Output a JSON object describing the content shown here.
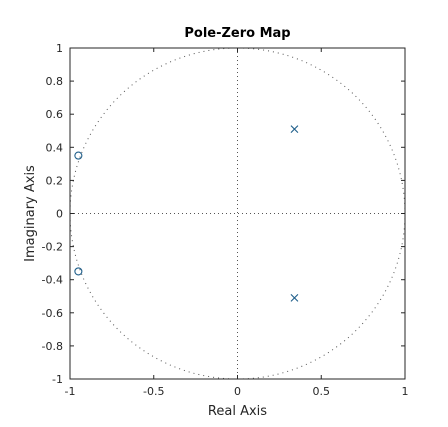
{
  "chart_data": {
    "type": "scatter",
    "title": "Pole-Zero Map",
    "xlabel": "Real Axis",
    "ylabel": "Imaginary Axis",
    "xlim": [
      -1,
      1
    ],
    "ylim": [
      -1,
      1
    ],
    "x_ticks": [
      "-1",
      "-0.5",
      "0",
      "0.5",
      "1"
    ],
    "x_tick_values": [
      -1,
      -0.5,
      0,
      0.5,
      1
    ],
    "y_ticks": [
      "1",
      "0.8",
      "0.6",
      "0.4",
      "0.2",
      "0",
      "-0.2",
      "-0.4",
      "-0.6",
      "-0.8",
      "-1"
    ],
    "y_tick_values": [
      1,
      0.8,
      0.6,
      0.4,
      0.2,
      0,
      -0.2,
      -0.4,
      -0.6,
      -0.8,
      -1
    ],
    "unit_circle": true,
    "grid": false,
    "series": [
      {
        "marker": "x",
        "color": "#1f5f8b",
        "points": [
          {
            "x": 0.34,
            "y": 0.51
          },
          {
            "x": 0.34,
            "y": -0.51
          }
        ]
      },
      {
        "marker": "o",
        "color": "#1f5f8b",
        "points": [
          {
            "x": -0.95,
            "y": 0.35
          },
          {
            "x": -0.95,
            "y": -0.35
          }
        ]
      }
    ]
  }
}
